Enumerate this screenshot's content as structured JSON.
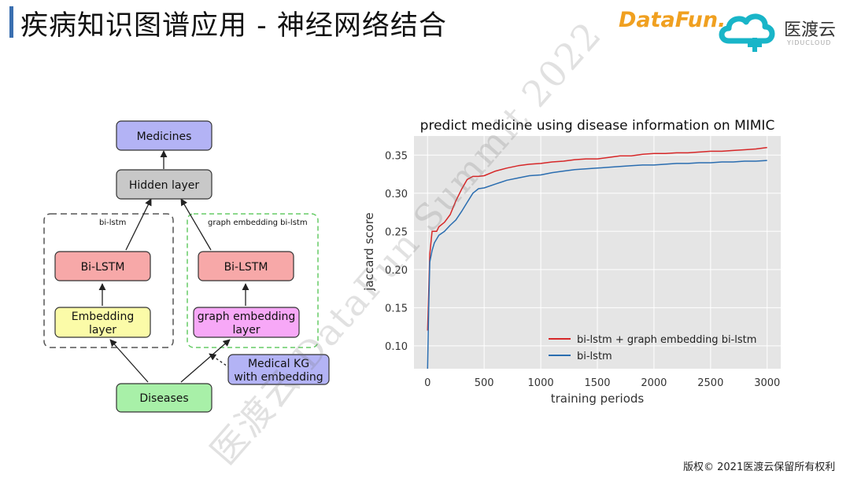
{
  "header": {
    "title": "疾病知识图谱应用  -  神经网络结合",
    "logo_datafun": "DataFun.",
    "logo_yidu": "医渡云",
    "logo_yidu_sub": "YIDUCLOUD"
  },
  "diagram": {
    "nodes": {
      "medicines": "Medicines",
      "hidden": "Hidden layer",
      "bilstm_left": "Bi-LSTM",
      "bilstm_right": "Bi-LSTM",
      "embedding_line1": "Embedding",
      "embedding_line2": "layer",
      "graph_embedding_line1": "graph embedding",
      "graph_embedding_line2": "layer",
      "medical_kg_line1": "Medical KG",
      "medical_kg_line2": "with embedding",
      "diseases": "Diseases"
    },
    "groups": {
      "left": "bi-lstm",
      "right": "graph embedding bi-lstm"
    },
    "colors": {
      "medicines": "#b3b3f5",
      "hidden": "#c8c8c8",
      "bilstm": "#f7a8a8",
      "embedding": "#fbfba8",
      "graph_embedding": "#f7a8f7",
      "medical_kg": "#b3b3f5",
      "diseases": "#a8f0a8",
      "group_left_border": "#555555",
      "group_right_border": "#66cc66"
    }
  },
  "chart_data": {
    "type": "line",
    "title": "predict medicine using disease information on MIMIC",
    "xlabel": "training periods",
    "ylabel": "jaccard score",
    "xlim": [
      -120,
      3120
    ],
    "ylim": [
      0.07,
      0.375
    ],
    "x_ticks": [
      0,
      500,
      1000,
      1500,
      2000,
      2500,
      3000
    ],
    "y_ticks": [
      0.1,
      0.15,
      0.2,
      0.25,
      0.3,
      0.35
    ],
    "x_tick_labels": [
      "0",
      "500",
      "1000",
      "1500",
      "2000",
      "2500",
      "3000"
    ],
    "y_tick_labels": [
      "0.10",
      "0.15",
      "0.20",
      "0.25",
      "0.30",
      "0.35"
    ],
    "grid": true,
    "background": "#e5e5e5",
    "legend_position": "lower-right",
    "series": [
      {
        "name": "bi-lstm + graph embedding bi-lstm",
        "color": "#d62728",
        "x": [
          0,
          10,
          20,
          40,
          60,
          80,
          100,
          150,
          200,
          250,
          300,
          350,
          400,
          450,
          500,
          600,
          700,
          800,
          900,
          1000,
          1100,
          1200,
          1300,
          1400,
          1500,
          1600,
          1700,
          1800,
          1900,
          2000,
          2100,
          2200,
          2300,
          2400,
          2500,
          2600,
          2700,
          2800,
          2900,
          3000
        ],
        "y": [
          0.12,
          0.17,
          0.22,
          0.25,
          0.25,
          0.25,
          0.256,
          0.262,
          0.272,
          0.29,
          0.305,
          0.318,
          0.322,
          0.322,
          0.323,
          0.329,
          0.333,
          0.336,
          0.338,
          0.339,
          0.341,
          0.342,
          0.344,
          0.345,
          0.345,
          0.347,
          0.349,
          0.349,
          0.351,
          0.352,
          0.352,
          0.353,
          0.353,
          0.354,
          0.355,
          0.355,
          0.356,
          0.357,
          0.358,
          0.36
        ]
      },
      {
        "name": "bi-lstm",
        "color": "#2a6db0",
        "x": [
          0,
          10,
          20,
          40,
          60,
          80,
          100,
          150,
          200,
          250,
          300,
          350,
          400,
          450,
          500,
          600,
          700,
          800,
          900,
          1000,
          1100,
          1200,
          1300,
          1400,
          1500,
          1600,
          1700,
          1800,
          1900,
          2000,
          2100,
          2200,
          2300,
          2400,
          2500,
          2600,
          2700,
          2800,
          2900,
          3000
        ],
        "y": [
          0.07,
          0.15,
          0.21,
          0.225,
          0.235,
          0.24,
          0.245,
          0.25,
          0.258,
          0.265,
          0.276,
          0.288,
          0.3,
          0.306,
          0.307,
          0.312,
          0.317,
          0.32,
          0.323,
          0.324,
          0.327,
          0.329,
          0.331,
          0.332,
          0.333,
          0.334,
          0.335,
          0.336,
          0.337,
          0.337,
          0.338,
          0.339,
          0.339,
          0.34,
          0.34,
          0.341,
          0.341,
          0.342,
          0.342,
          0.343
        ]
      }
    ]
  },
  "watermark": "医渡云  DataFun Summit 2022",
  "footer": {
    "copyright": "版权© 2021医渡云保留所有权利"
  }
}
